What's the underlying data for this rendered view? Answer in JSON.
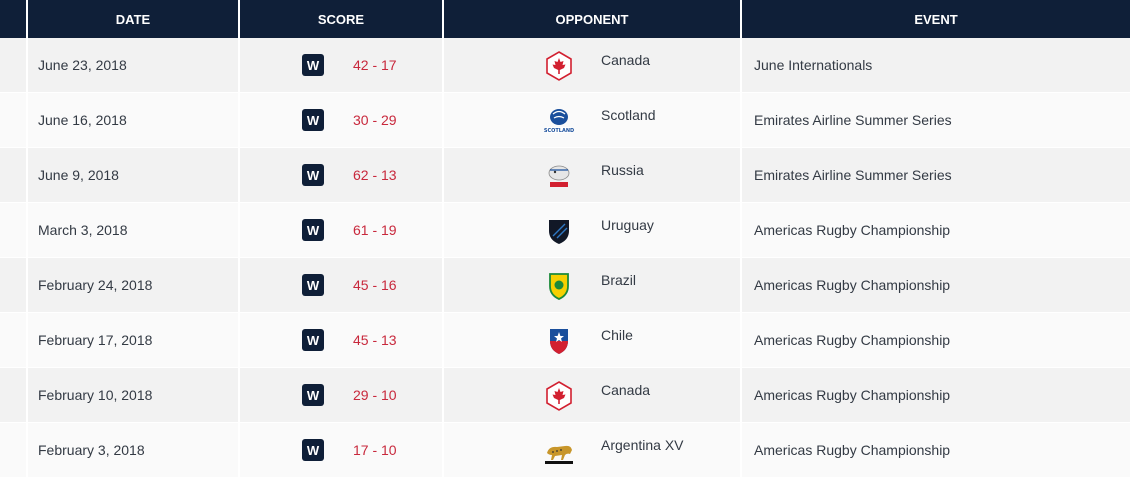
{
  "header": {
    "date": "DATE",
    "score": "SCORE",
    "opponent": "OPPONENT",
    "event": "EVENT"
  },
  "rows": [
    {
      "date": "June 23, 2018",
      "result": "W",
      "score": "42 - 17",
      "opponent": "Canada",
      "logo": "canada-maple-leaf-icon",
      "event": "June Internationals"
    },
    {
      "date": "June 16, 2018",
      "result": "W",
      "score": "30 - 29",
      "opponent": "Scotland",
      "logo": "scotland-thistle-icon",
      "event": "Emirates Airline Summer Series"
    },
    {
      "date": "June 9, 2018",
      "result": "W",
      "score": "62 - 13",
      "opponent": "Russia",
      "logo": "russia-bear-icon",
      "event": "Emirates Airline Summer Series"
    },
    {
      "date": "March 3, 2018",
      "result": "W",
      "score": "61 - 19",
      "opponent": "Uruguay",
      "logo": "uruguay-shield-icon",
      "event": "Americas Rugby Championship"
    },
    {
      "date": "February 24, 2018",
      "result": "W",
      "score": "45 - 16",
      "opponent": "Brazil",
      "logo": "brazil-shield-icon",
      "event": "Americas Rugby Championship"
    },
    {
      "date": "February 17, 2018",
      "result": "W",
      "score": "45 - 13",
      "opponent": "Chile",
      "logo": "chile-shield-icon",
      "event": "Americas Rugby Championship"
    },
    {
      "date": "February 10, 2018",
      "result": "W",
      "score": "29 - 10",
      "opponent": "Canada",
      "logo": "canada-maple-leaf-icon",
      "event": "Americas Rugby Championship"
    },
    {
      "date": "February 3, 2018",
      "result": "W",
      "score": "17 - 10",
      "opponent": "Argentina XV",
      "logo": "argentina-jaguar-icon",
      "event": "Americas Rugby Championship"
    }
  ],
  "colors": {
    "header_bg": "#0f1f38",
    "score_text": "#c8283c",
    "badge_bg": "#0f1f38"
  }
}
